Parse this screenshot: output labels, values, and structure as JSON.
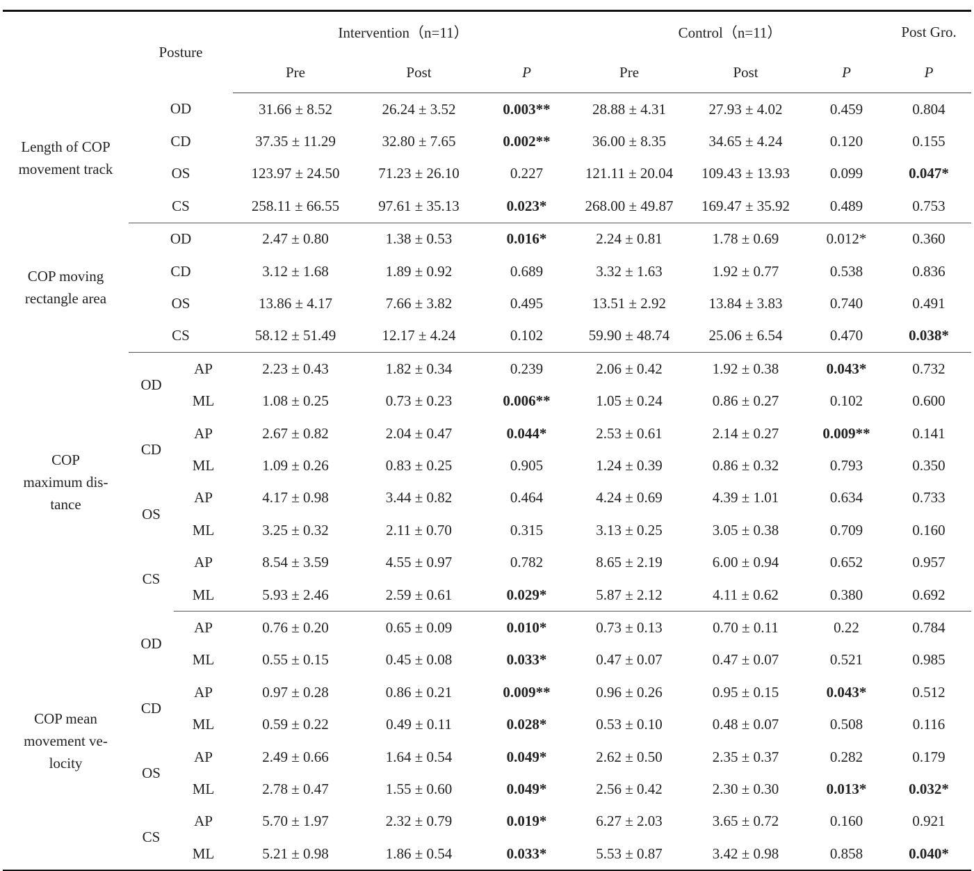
{
  "header": {
    "posture": "Posture",
    "groups": [
      "Intervention（n=11）",
      "Control（n=11）",
      "Post Gro."
    ],
    "columns": [
      "Pre",
      "Post",
      "P",
      "Pre",
      "Post",
      "P",
      "P"
    ]
  },
  "sections": [
    {
      "label": [
        "Length of COP",
        "movement track"
      ],
      "rows": [
        {
          "posture": "OD",
          "cells": [
            "31.66 ± 8.52",
            "26.24 ± 3.52",
            "0.003**",
            "28.88 ± 4.31",
            "27.93 ± 4.02",
            "0.459",
            "0.804"
          ],
          "bold": [
            2
          ]
        },
        {
          "posture": "CD",
          "cells": [
            "37.35 ± 11.29",
            "32.80 ± 7.65",
            "0.002**",
            "36.00 ± 8.35",
            "34.65 ± 4.24",
            "0.120",
            "0.155"
          ],
          "bold": [
            2
          ]
        },
        {
          "posture": "OS",
          "cells": [
            "123.97 ± 24.50",
            "71.23 ± 26.10",
            "0.227",
            "121.11 ± 20.04",
            "109.43 ± 13.93",
            "0.099",
            "0.047*"
          ],
          "bold": [
            6
          ]
        },
        {
          "posture": "CS",
          "cells": [
            "258.11 ± 66.55",
            "97.61 ± 35.13",
            "0.023*",
            "268.00 ± 49.87",
            "169.47 ± 35.92",
            "0.489",
            "0.753"
          ],
          "bold": [
            2
          ]
        }
      ]
    },
    {
      "label": [
        "COP moving",
        "rectangle area"
      ],
      "rows": [
        {
          "posture": "OD",
          "cells": [
            "2.47 ± 0.80",
            "1.38 ± 0.53",
            "0.016*",
            "2.24 ± 0.81",
            "1.78 ± 0.69",
            "0.012*",
            "0.360"
          ],
          "bold": [
            2
          ]
        },
        {
          "posture": "CD",
          "cells": [
            "3.12 ± 1.68",
            "1.89 ± 0.92",
            "0.689",
            "3.32 ± 1.63",
            "1.92 ± 0.77",
            "0.538",
            "0.836"
          ]
        },
        {
          "posture": "OS",
          "cells": [
            "13.86 ± 4.17",
            "7.66 ± 3.82",
            "0.495",
            "13.51 ± 2.92",
            "13.84 ± 3.83",
            "0.740",
            "0.491"
          ]
        },
        {
          "posture": "CS",
          "cells": [
            "58.12 ± 51.49",
            "12.17 ± 4.24",
            "0.102",
            "59.90 ± 48.74",
            "25.06 ± 6.54",
            "0.470",
            "0.038*"
          ],
          "bold": [
            6
          ]
        }
      ]
    },
    {
      "label": [
        "COP",
        "maximum dis-",
        "tance"
      ],
      "subgroups": [
        {
          "posture": "OD",
          "rows": [
            {
              "direction": "AP",
              "cells": [
                "2.23 ± 0.43",
                "1.82 ± 0.34",
                "0.239",
                "2.06 ± 0.42",
                "1.92 ± 0.38",
                "0.043*",
                "0.732"
              ],
              "bold": [
                5
              ]
            },
            {
              "direction": "ML",
              "cells": [
                "1.08 ± 0.25",
                "0.73 ± 0.23",
                "0.006**",
                "1.05 ± 0.24",
                "0.86 ± 0.27",
                "0.102",
                "0.600"
              ],
              "bold": [
                2
              ]
            }
          ]
        },
        {
          "posture": "CD",
          "rows": [
            {
              "direction": "AP",
              "cells": [
                "2.67 ± 0.82",
                "2.04 ± 0.47",
                "0.044*",
                "2.53 ± 0.61",
                "2.14 ± 0.27",
                "0.009**",
                "0.141"
              ],
              "bold": [
                2,
                5
              ]
            },
            {
              "direction": "ML",
              "cells": [
                "1.09 ± 0.26",
                "0.83 ± 0.25",
                "0.905",
                "1.24 ± 0.39",
                "0.86 ± 0.32",
                "0.793",
                "0.350"
              ]
            }
          ]
        },
        {
          "posture": "OS",
          "rows": [
            {
              "direction": "AP",
              "cells": [
                "4.17 ± 0.98",
                "3.44 ± 0.82",
                "0.464",
                "4.24 ± 0.69",
                "4.39 ± 1.01",
                "0.634",
                "0.733"
              ]
            },
            {
              "direction": "ML",
              "cells": [
                "3.25 ± 0.32",
                "2.11 ± 0.70",
                "0.315",
                "3.13 ± 0.25",
                "3.05 ± 0.38",
                "0.709",
                "0.160"
              ]
            }
          ]
        },
        {
          "posture": "CS",
          "rows": [
            {
              "direction": "AP",
              "cells": [
                "8.54 ± 3.59",
                "4.55 ± 0.97",
                "0.782",
                "8.65 ± 2.19",
                "6.00 ± 0.94",
                "0.652",
                "0.957"
              ]
            },
            {
              "direction": "ML",
              "cells": [
                "5.93 ± 2.46",
                "2.59 ± 0.61",
                "0.029*",
                "5.87 ± 2.12",
                "4.11 ± 0.62",
                "0.380",
                "0.692"
              ],
              "bold": [
                2
              ]
            }
          ]
        }
      ]
    },
    {
      "label": [
        "COP mean",
        "movement ve-",
        "locity"
      ],
      "subgroups": [
        {
          "posture": "OD",
          "rows": [
            {
              "direction": "AP",
              "cells": [
                "0.76 ± 0.20",
                "0.65 ± 0.09",
                "0.010*",
                "0.73 ± 0.13",
                "0.70 ± 0.11",
                "0.22",
                "0.784"
              ],
              "bold": [
                2
              ]
            },
            {
              "direction": "ML",
              "cells": [
                "0.55 ± 0.15",
                "0.45 ± 0.08",
                "0.033*",
                "0.47 ± 0.07",
                "0.47 ± 0.07",
                "0.521",
                "0.985"
              ],
              "bold": [
                2
              ]
            }
          ]
        },
        {
          "posture": "CD",
          "rows": [
            {
              "direction": "AP",
              "cells": [
                "0.97 ± 0.28",
                "0.86 ± 0.21",
                "0.009**",
                "0.96 ± 0.26",
                "0.95 ± 0.15",
                "0.043*",
                "0.512"
              ],
              "bold": [
                2,
                5
              ]
            },
            {
              "direction": "ML",
              "cells": [
                "0.59 ± 0.22",
                "0.49 ± 0.11",
                "0.028*",
                "0.53 ± 0.10",
                "0.48 ± 0.07",
                "0.508",
                "0.116"
              ],
              "bold": [
                2
              ]
            }
          ]
        },
        {
          "posture": "OS",
          "rows": [
            {
              "direction": "AP",
              "cells": [
                "2.49 ± 0.66",
                "1.64 ± 0.54",
                "0.049*",
                "2.62 ± 0.50",
                "2.35 ± 0.37",
                "0.282",
                "0.179"
              ],
              "bold": [
                2
              ]
            },
            {
              "direction": "ML",
              "cells": [
                "2.78 ± 0.47",
                "1.55 ± 0.60",
                "0.049*",
                "2.56 ± 0.42",
                "2.30 ± 0.30",
                "0.013*",
                "0.032*"
              ],
              "bold": [
                2,
                5,
                6
              ]
            }
          ]
        },
        {
          "posture": "CS",
          "rows": [
            {
              "direction": "AP",
              "cells": [
                "5.70 ± 1.97",
                "2.32 ± 0.79",
                "0.019*",
                "6.27 ± 2.03",
                "3.65 ± 0.72",
                "0.160",
                "0.921"
              ],
              "bold": [
                2
              ]
            },
            {
              "direction": "ML",
              "cells": [
                "5.21 ± 0.98",
                "1.86 ± 0.54",
                "0.033*",
                "5.53 ± 0.87",
                "3.42 ± 0.98",
                "0.858",
                "0.040*"
              ],
              "bold": [
                2,
                6
              ]
            }
          ]
        }
      ]
    }
  ]
}
